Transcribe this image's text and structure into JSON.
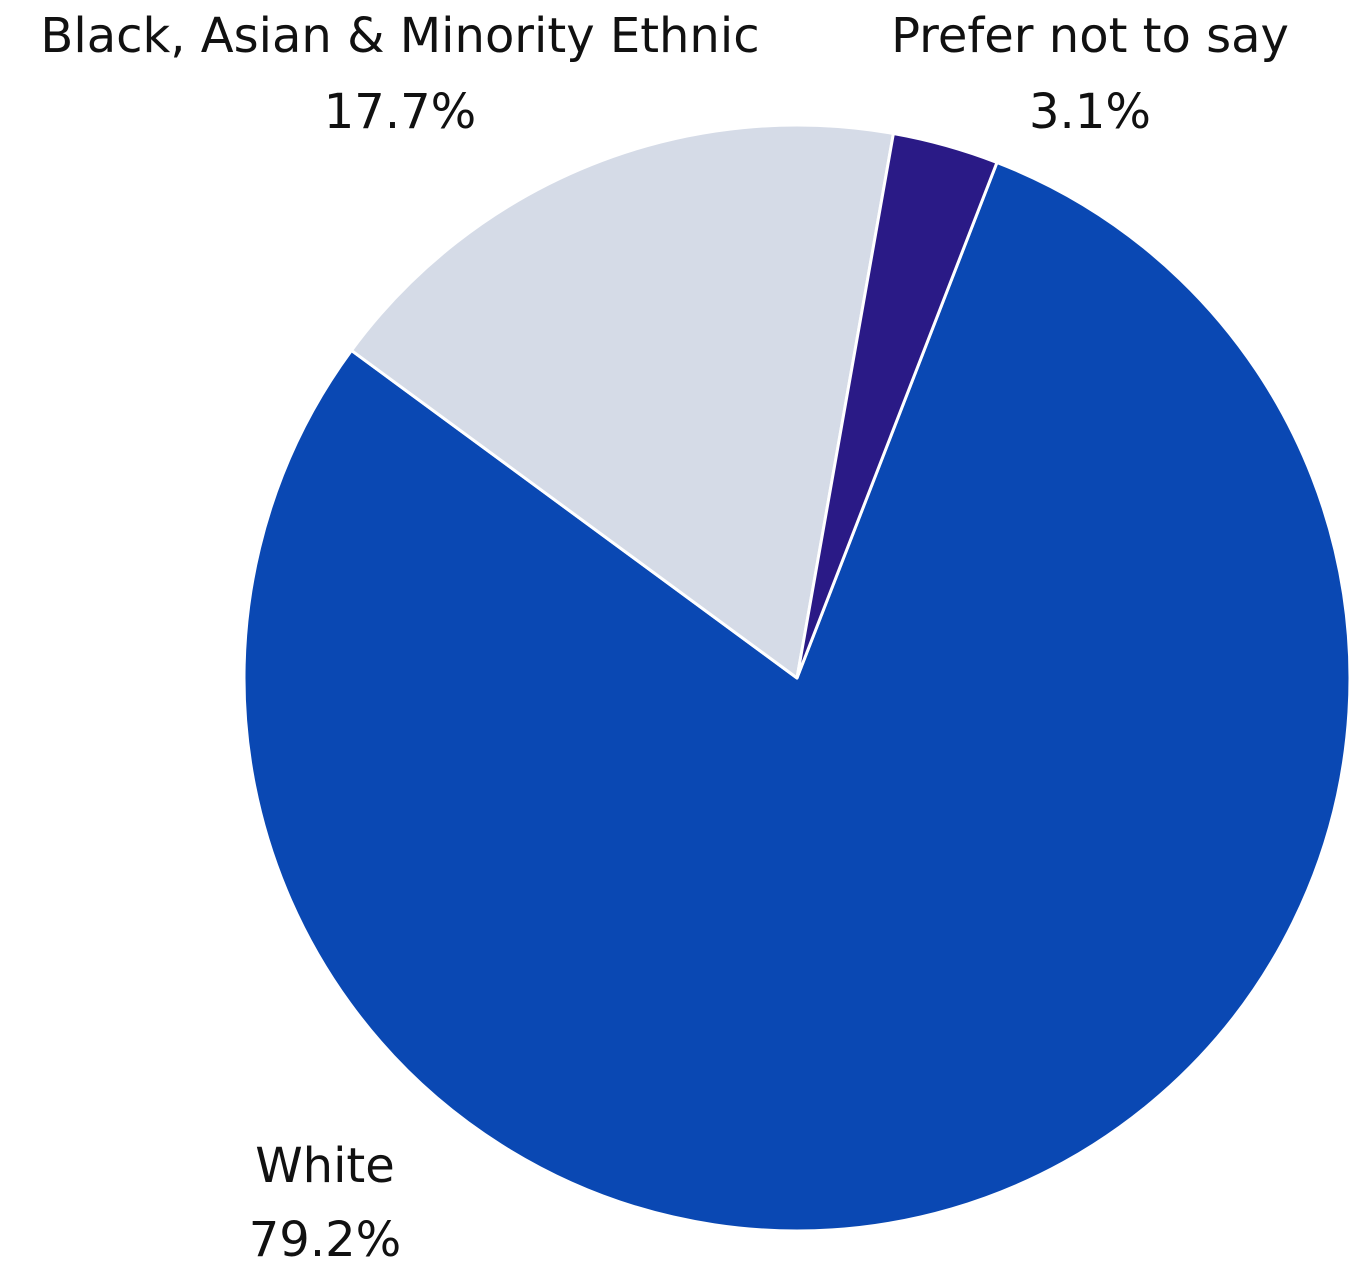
{
  "chart_data": {
    "type": "pie",
    "slices": [
      {
        "label": "White",
        "value": 79.2,
        "value_label": "79.2%",
        "color": "#0a48b3"
      },
      {
        "label": "Black, Asian & Minority Ethnic",
        "value": 17.7,
        "value_label": "17.7%",
        "color": "#d5dbe7"
      },
      {
        "label": "Prefer not to say",
        "value": 3.1,
        "value_label": "3.1%",
        "color": "#2a1a86"
      }
    ],
    "legend": "none"
  }
}
